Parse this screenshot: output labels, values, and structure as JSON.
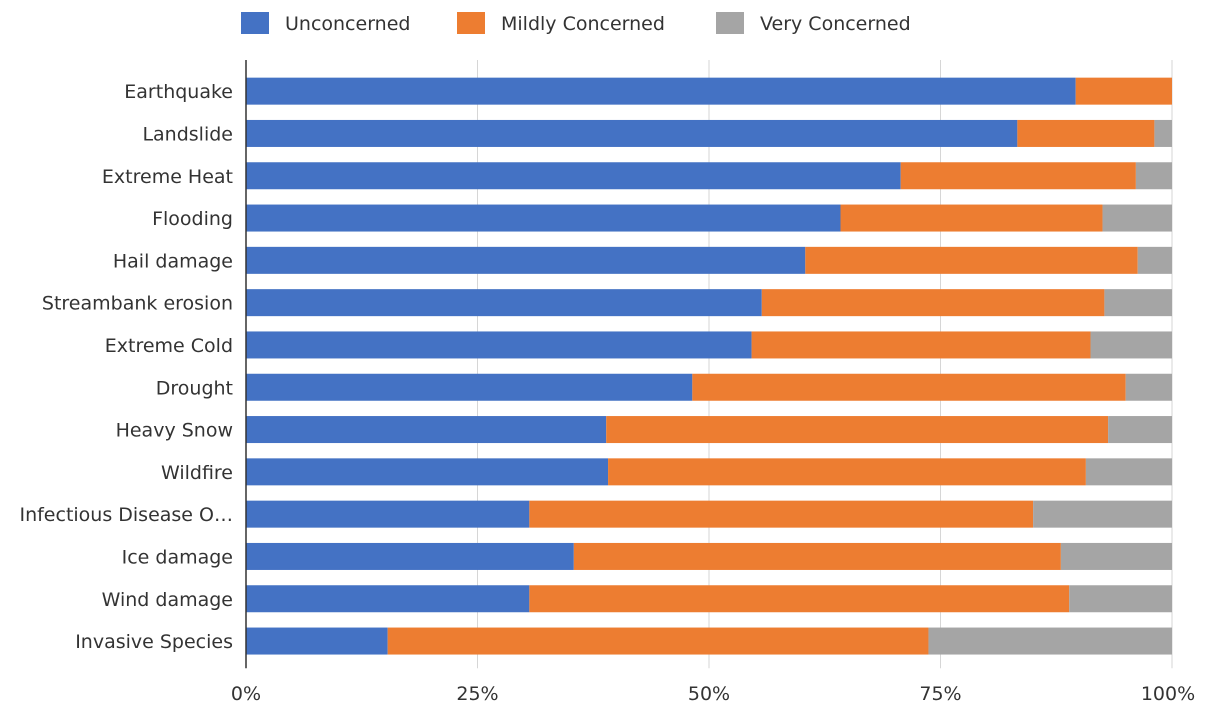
{
  "chart_data": {
    "type": "bar",
    "orientation": "horizontal",
    "stacked": "percent",
    "categories": [
      "Earthquake",
      "Landslide",
      "Extreme Heat",
      "Flooding",
      "Hail damage",
      "Streambank erosion",
      "Extreme Cold",
      "Drought",
      "Heavy Snow",
      "Wildfire",
      "Infectious Disease O…",
      "Ice damage",
      "Wind damage",
      "Invasive Species"
    ],
    "series": [
      {
        "name": "Unconcerned",
        "color": "#4472C4",
        "values": [
          0.896,
          0.833,
          0.707,
          0.642,
          0.604,
          0.557,
          0.546,
          0.482,
          0.389,
          0.391,
          0.306,
          0.354,
          0.306,
          0.153
        ]
      },
      {
        "name": "Mildly Concerned",
        "color": "#ED7D31",
        "values": [
          0.104,
          0.148,
          0.254,
          0.283,
          0.359,
          0.37,
          0.366,
          0.468,
          0.542,
          0.516,
          0.544,
          0.526,
          0.583,
          0.584
        ]
      },
      {
        "name": "Very Concerned",
        "color": "#A5A5A5",
        "values": [
          0.0,
          0.019,
          0.039,
          0.075,
          0.037,
          0.073,
          0.088,
          0.05,
          0.069,
          0.093,
          0.15,
          0.12,
          0.111,
          0.263
        ]
      }
    ],
    "x_ticks": [
      "0%",
      "25%",
      "50%",
      "75%",
      "100%"
    ],
    "xlim": [
      0,
      1
    ],
    "grid": true,
    "legend_position": "top",
    "title": "",
    "xlabel": "",
    "ylabel": ""
  }
}
